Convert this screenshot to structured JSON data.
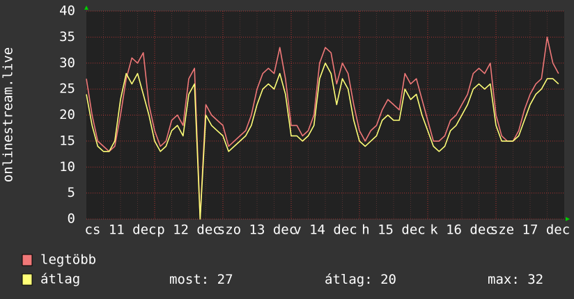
{
  "chart_data": {
    "type": "line",
    "y_label": "onlinestream.live",
    "ylim": [
      0,
      40
    ],
    "yticks": [
      0,
      5,
      10,
      15,
      20,
      25,
      30,
      35,
      40
    ],
    "grid": true,
    "x_labels": [
      "cs 11 dec",
      "p 12 dec",
      "szo 13 dec",
      "v 14 dec",
      "h 15 dec",
      "k 16 dec",
      "sze 17 dec"
    ],
    "series": [
      {
        "name": "legtöbb",
        "color": "#f07878",
        "values": [
          27,
          20,
          15,
          14,
          13,
          14,
          20,
          27,
          31,
          30,
          32,
          22,
          17,
          14,
          15,
          19,
          20,
          18,
          27,
          29,
          0,
          22,
          20,
          19,
          18,
          14,
          15,
          16,
          17,
          20,
          25,
          28,
          29,
          28,
          33,
          27,
          18,
          18,
          16,
          17,
          20,
          30,
          33,
          32,
          26,
          30,
          28,
          22,
          17,
          15,
          17,
          18,
          21,
          23,
          22,
          21,
          28,
          26,
          27,
          23,
          19,
          15,
          15,
          16,
          19,
          20,
          22,
          24,
          28,
          29,
          28,
          30,
          20,
          16,
          15,
          15,
          17,
          21,
          24,
          26,
          27,
          35,
          30,
          28
        ]
      },
      {
        "name": "átlag",
        "color": "#ffff78",
        "values": [
          24,
          18,
          14,
          13,
          13,
          15,
          23,
          28,
          26,
          28,
          24,
          20,
          15,
          13,
          14,
          17,
          18,
          16,
          24,
          26,
          0,
          20,
          18,
          17,
          16,
          13,
          14,
          15,
          16,
          18,
          22,
          25,
          26,
          25,
          28,
          24,
          16,
          16,
          15,
          16,
          18,
          27,
          30,
          28,
          22,
          27,
          25,
          19,
          15,
          14,
          15,
          16,
          19,
          20,
          19,
          19,
          25,
          23,
          24,
          20,
          17,
          14,
          13,
          14,
          17,
          18,
          20,
          22,
          25,
          26,
          25,
          26,
          18,
          15,
          15,
          15,
          16,
          19,
          22,
          24,
          25,
          27,
          27,
          26
        ]
      }
    ],
    "legend_stats": [
      {
        "label": "most:",
        "value": 27
      },
      {
        "label": "átlag:",
        "value": 20
      },
      {
        "label": "max:",
        "value": 32
      }
    ]
  }
}
